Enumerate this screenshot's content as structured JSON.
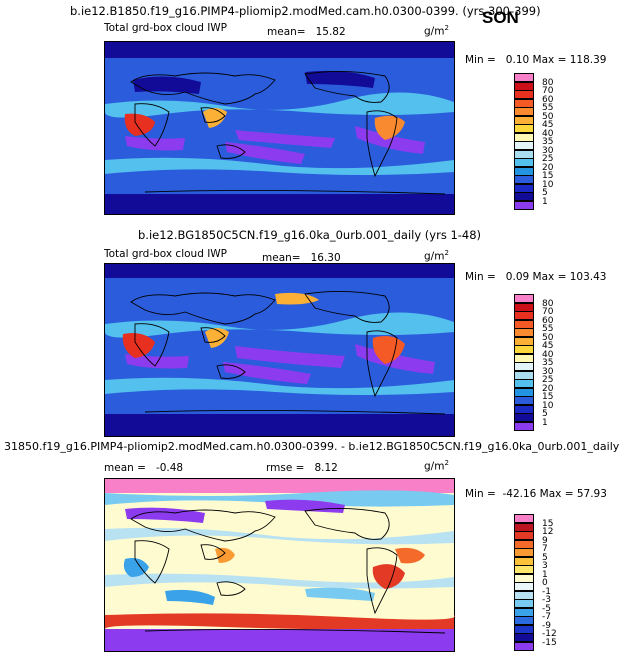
{
  "season": "SON",
  "panels": [
    {
      "title": "b.ie12.B1850.f19_g16.PIMP4-pliomip2.modMed.cam.h0.0300-0399. (yrs 300-399)",
      "variable": "Total grd-box cloud IWP",
      "mean_label": "mean=",
      "mean_value": "15.82",
      "units": "g/m",
      "units_sup": "2",
      "min_label": "Min =",
      "min_value": "0.10",
      "max_label": "Max =",
      "max_value": "118.39",
      "colorbar": {
        "labels": [
          "80",
          "70",
          "60",
          "55",
          "50",
          "45",
          "40",
          "35",
          "30",
          "25",
          "20",
          "15",
          "10",
          "5",
          "1"
        ],
        "colors": [
          "#f780c8",
          "#cc0f18",
          "#e83020",
          "#f45a26",
          "#f98a30",
          "#fcb036",
          "#fdd83c",
          "#fff9b4",
          "#e2f4f8",
          "#a8dcee",
          "#54c0ee",
          "#2394e2",
          "#2a5cdc",
          "#1a28c4",
          "#120b98",
          "#8c3cee"
        ]
      }
    },
    {
      "title": "b.ie12.BG1850C5CN.f19_g16.0ka_0urb.001_daily (yrs 1-48)",
      "variable": "Total grd-box cloud IWP",
      "mean_label": "mean=",
      "mean_value": "16.30",
      "units": "g/m",
      "units_sup": "2",
      "min_label": "Min =",
      "min_value": "0.09",
      "max_label": "Max =",
      "max_value": "103.43",
      "colorbar": {
        "labels": [
          "80",
          "70",
          "60",
          "55",
          "50",
          "45",
          "40",
          "35",
          "30",
          "25",
          "20",
          "15",
          "10",
          "5",
          "1"
        ],
        "colors": [
          "#f780c8",
          "#cc0f18",
          "#e83020",
          "#f45a26",
          "#f98a30",
          "#fcb036",
          "#fdd83c",
          "#fff9b4",
          "#e2f4f8",
          "#a8dcee",
          "#54c0ee",
          "#2394e2",
          "#2a5cdc",
          "#1a28c4",
          "#120b98",
          "#8c3cee"
        ]
      }
    },
    {
      "title": "31850.f19_g16.PIMP4-pliomip2.modMed.cam.h0.0300-0399. - b.ie12.BG1850C5CN.f19_g16.0ka_0urb.001_daily",
      "mean_label": "mean =",
      "mean_value": "-0.48",
      "rmse_label": "rmse =",
      "rmse_value": "8.12",
      "units": "g/m",
      "units_sup": "2",
      "min_label": "Min =",
      "min_value": "-42.16",
      "max_label": "Max =",
      "max_value": "57.93",
      "colorbar": {
        "labels": [
          "15",
          "12",
          "9",
          "7",
          "5",
          "3",
          "1",
          "0",
          "-1",
          "-3",
          "-5",
          "-7",
          "-9",
          "-12",
          "-15"
        ],
        "colors": [
          "#f780c8",
          "#bc1420",
          "#e23a24",
          "#f36a2a",
          "#f99a32",
          "#fcc23a",
          "#fee66a",
          "#fffbd0",
          "#eaf6fa",
          "#b8e2f2",
          "#78caf0",
          "#3aa2e8",
          "#2a6ce0",
          "#1c34c8",
          "#120b98",
          "#8c3cee"
        ]
      }
    }
  ],
  "chart_data": [
    {
      "type": "heatmap",
      "title": "b.ie12.B1850.f19_g16.PIMP4-pliomip2.modMed.cam.h0.0300-0399. (yrs 300-399)",
      "variable": "Total grd-box cloud IWP",
      "units": "g/m2",
      "mean": 15.82,
      "min": 0.1,
      "max": 118.39,
      "levels": [
        1,
        5,
        10,
        15,
        20,
        25,
        30,
        35,
        40,
        45,
        50,
        55,
        60,
        70,
        80
      ]
    },
    {
      "type": "heatmap",
      "title": "b.ie12.BG1850C5CN.f19_g16.0ka_0urb.001_daily (yrs 1-48)",
      "variable": "Total grd-box cloud IWP",
      "units": "g/m2",
      "mean": 16.3,
      "min": 0.09,
      "max": 103.43,
      "levels": [
        1,
        5,
        10,
        15,
        20,
        25,
        30,
        35,
        40,
        45,
        50,
        55,
        60,
        70,
        80
      ]
    },
    {
      "type": "heatmap",
      "title": "31850.f19_g16.PIMP4-pliomip2.modMed.cam.h0.0300-0399. - b.ie12.BG1850C5CN.f19_g16.0ka_0urb.001_daily",
      "units": "g/m2",
      "mean": -0.48,
      "rmse": 8.12,
      "min": -42.16,
      "max": 57.93,
      "levels": [
        -15,
        -12,
        -9,
        -7,
        -5,
        -3,
        -1,
        0,
        1,
        3,
        5,
        7,
        9,
        12,
        15
      ]
    }
  ]
}
